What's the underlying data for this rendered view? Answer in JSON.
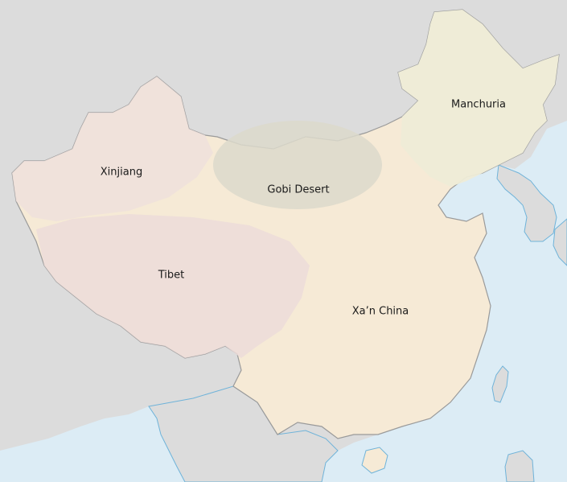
{
  "map": {
    "colors": {
      "background_land": "#dcdcdc",
      "sea": "#dcecf5",
      "china_base": "#f6ead6",
      "xinjiang": "#efe1dc",
      "tibet": "#ecdcd9",
      "gobi": "#dcd9cb",
      "manchuria": "#eeecd7",
      "xan_china": "#f7efdd",
      "border": "#9a9a9a",
      "coast": "#6fb3d9"
    },
    "labels": {
      "xinjiang": "Xinjiang",
      "gobi": "Gobi Desert",
      "tibet": "Tibet",
      "xan_china": "Xa’n China",
      "manchuria": "Manchuria"
    }
  }
}
